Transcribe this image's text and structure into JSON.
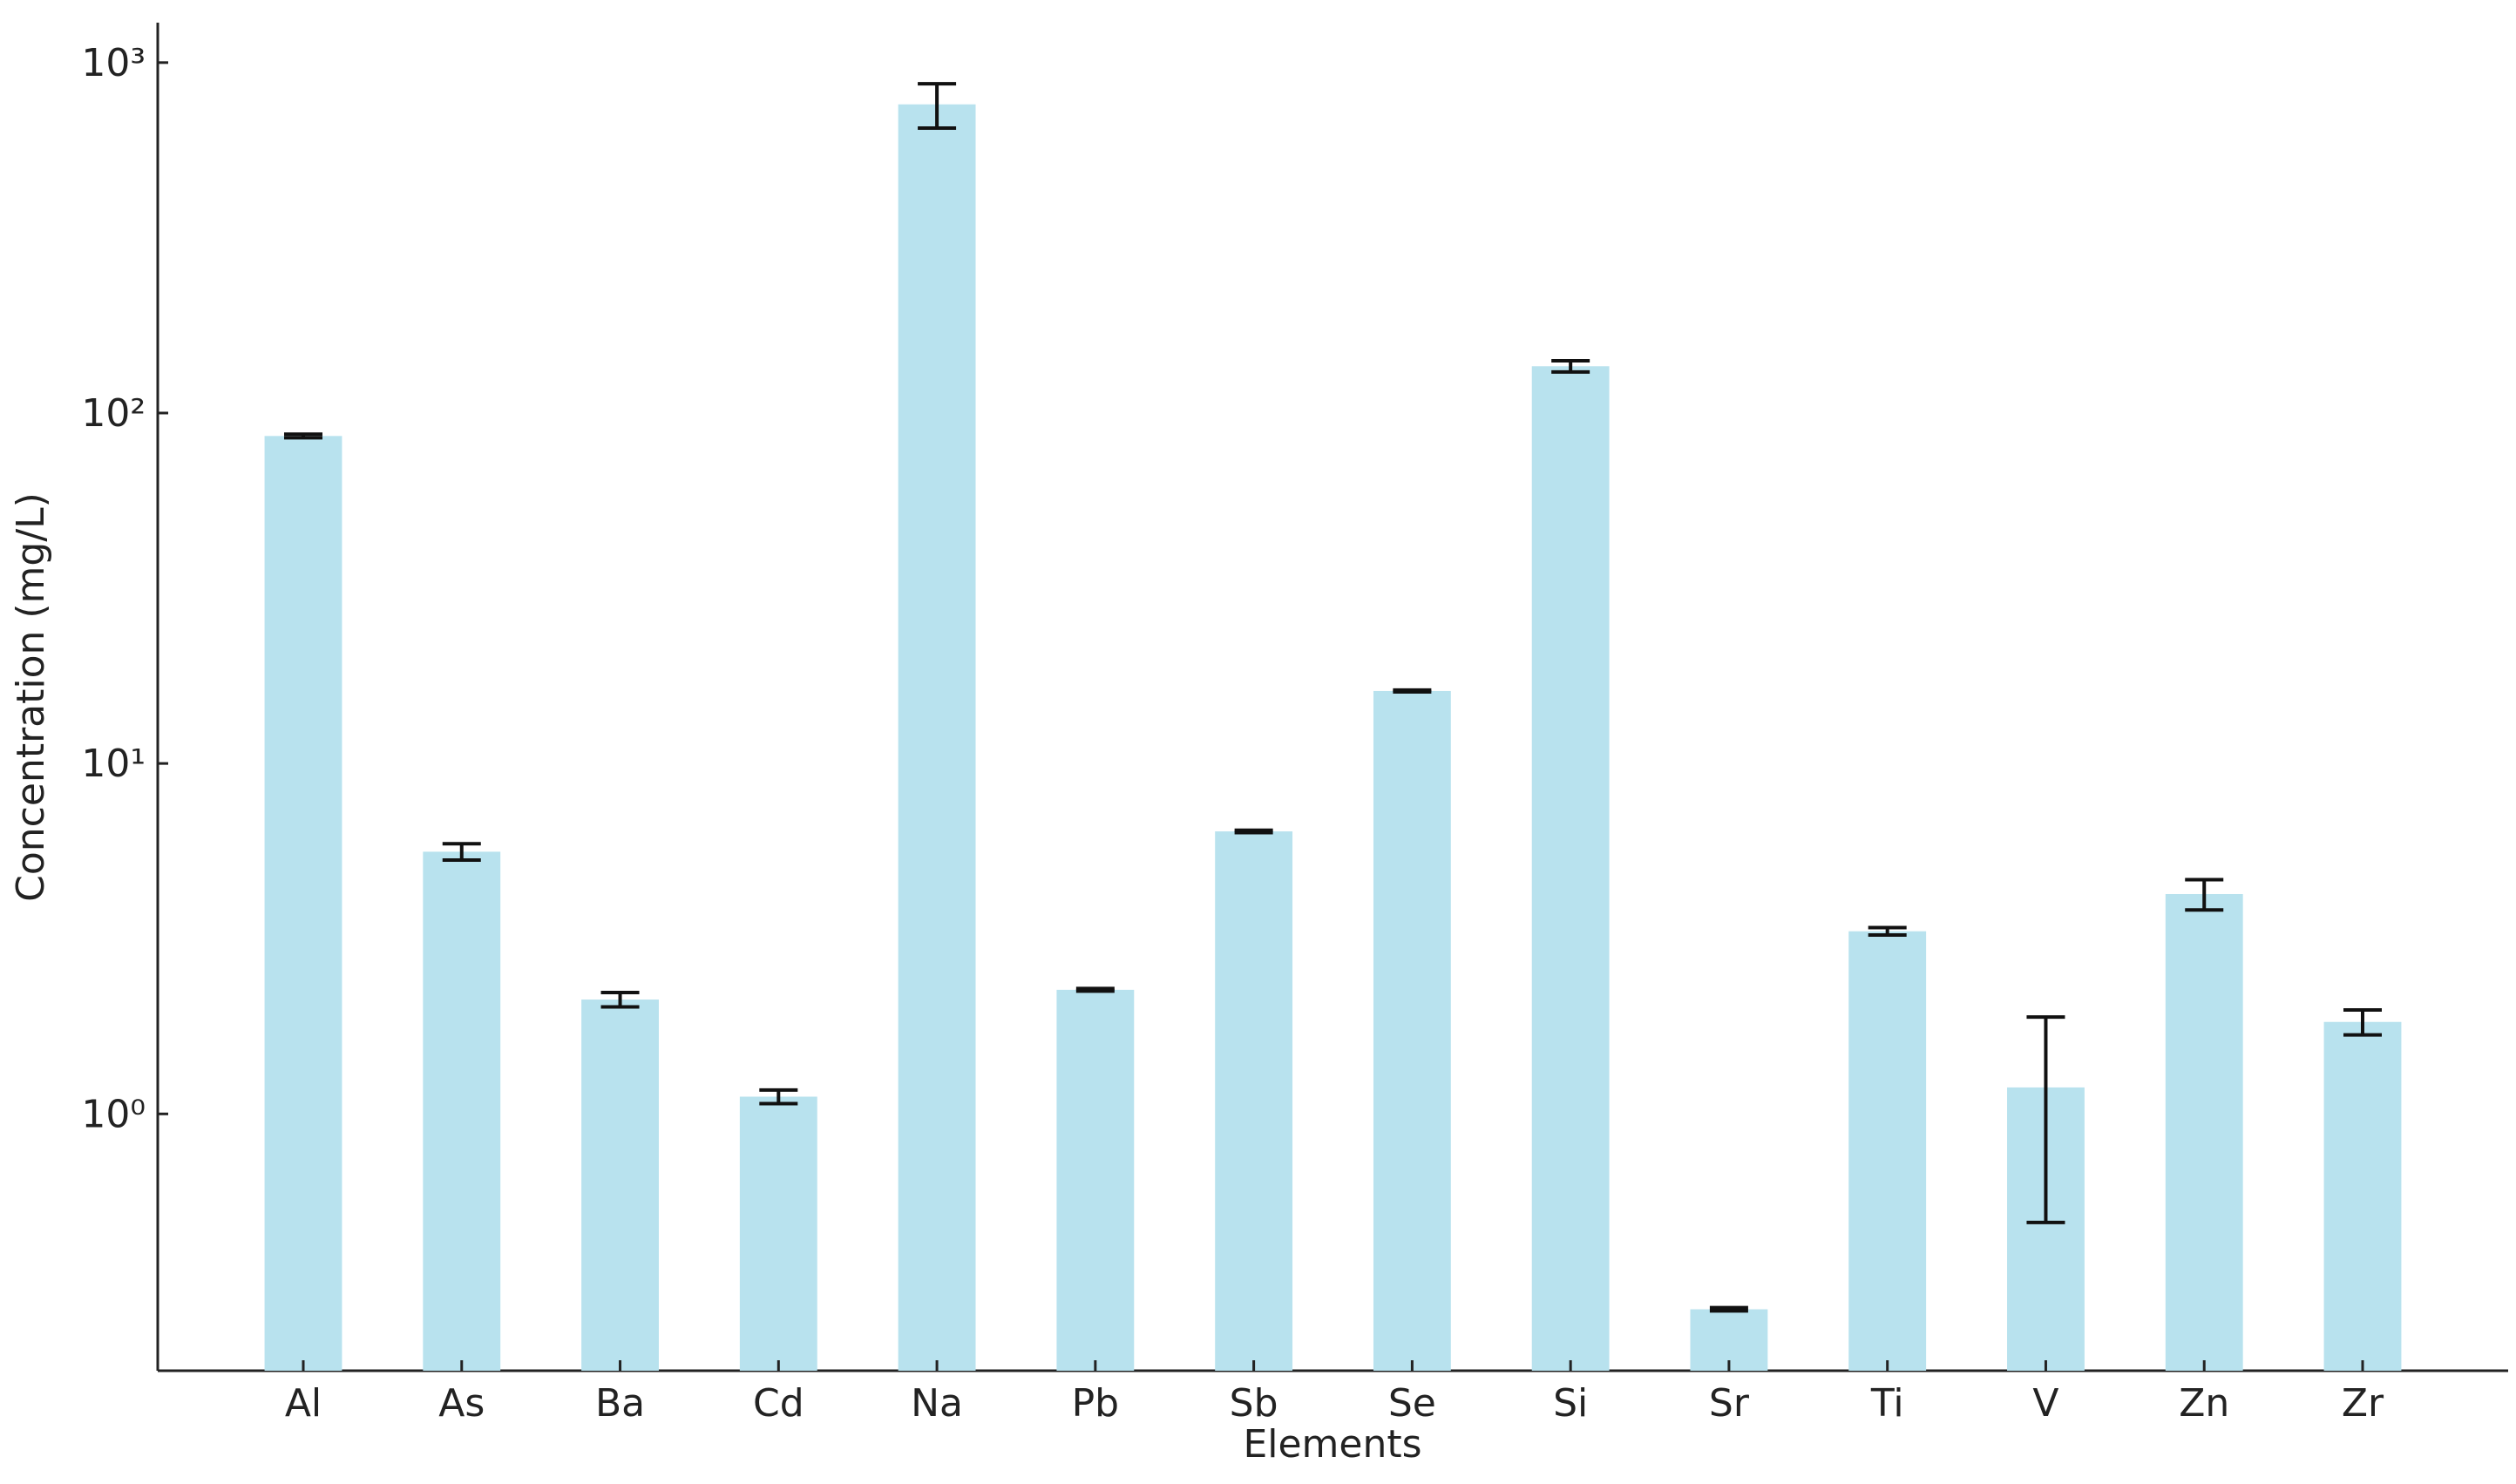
{
  "chart_data": {
    "type": "bar",
    "xlabel": "Elements",
    "ylabel": "Concentration (mg/L)",
    "categories": [
      "Al",
      "As",
      "Ba",
      "Cd",
      "Na",
      "Pb",
      "Sb",
      "Se",
      "Si",
      "Sr",
      "Ti",
      "V",
      "Zn",
      "Zr"
    ],
    "values": [
      86,
      5.6,
      2.12,
      1.12,
      760,
      2.26,
      6.4,
      16.1,
      136,
      0.277,
      3.32,
      1.19,
      4.24,
      1.83
    ],
    "errors": [
      1,
      0.3,
      0.1,
      0.05,
      110,
      0.02,
      0.05,
      0.1,
      5,
      0.003,
      0.08,
      0.7,
      0.42,
      0.15
    ],
    "color": "#b8e2ee",
    "error_color": "#111111",
    "ylog": true,
    "ylim": [
      0.185,
      1300
    ],
    "yticks": [
      {
        "value": 1,
        "label": "10⁰"
      },
      {
        "value": 10,
        "label": "10¹"
      },
      {
        "value": 100,
        "label": "10²"
      },
      {
        "value": 1000,
        "label": "10³"
      }
    ],
    "grid": false
  }
}
